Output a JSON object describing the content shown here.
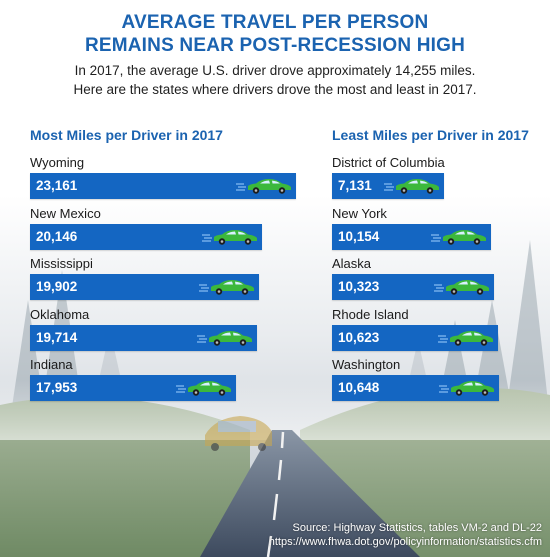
{
  "header": {
    "title_line1": "AVERAGE TRAVEL PER PERSON",
    "title_line2": "REMAINS NEAR POST-RECESSION HIGH",
    "subtitle_line1": "In 2017, the average U.S. driver drove approximately 14,255 miles.",
    "subtitle_line2": "Here are the states where drivers drove the most and least in 2017."
  },
  "footer": {
    "source_line1": "Source: Highway Statistics, tables VM-2 and DL-22",
    "source_line2": "https://www.fhwa.dot.gov/policyinformation/statistics.cfm"
  },
  "colors": {
    "title": "#1b63b0",
    "bar": "#1466c2",
    "car": "#3cb83c"
  },
  "icons": [
    "car-icon"
  ],
  "chart_data": [
    {
      "type": "bar",
      "orientation": "horizontal",
      "title": "Most Miles per Driver in 2017",
      "categories": [
        "Wyoming",
        "New Mexico",
        "Mississippi",
        "Oklahoma",
        "Indiana"
      ],
      "values": [
        23161,
        20146,
        19902,
        19714,
        17953
      ],
      "labels": [
        "23,161",
        "20,146",
        "19,902",
        "19,714",
        "17,953"
      ],
      "xlim": [
        0,
        24000
      ]
    },
    {
      "type": "bar",
      "orientation": "horizontal",
      "title": "Least Miles per Driver in 2017",
      "categories": [
        "District of Columbia",
        "New York",
        "Alaska",
        "Rhode Island",
        "Washington"
      ],
      "values": [
        7131,
        10154,
        10323,
        10623,
        10648
      ],
      "labels": [
        "7,131",
        "10,154",
        "10,323",
        "10,623",
        "10,648"
      ],
      "xlim": [
        0,
        24000
      ]
    }
  ]
}
